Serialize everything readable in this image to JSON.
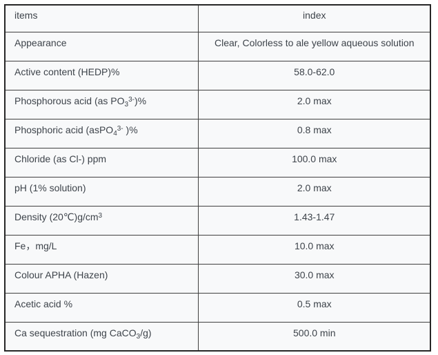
{
  "colors": {
    "border_outer": "#262626",
    "border_inner": "#3f3f3f",
    "cell_bg": "#f8f9fa",
    "text": "#3d434a",
    "page_bg": "#ffffff"
  },
  "table": {
    "columns": [
      {
        "label": "items"
      },
      {
        "label": "index"
      }
    ],
    "rows": [
      {
        "item": [
          {
            "t": "Appearance"
          }
        ],
        "index": [
          {
            "t": "Clear, Colorless to ale yellow aqueous solution"
          }
        ]
      },
      {
        "item": [
          {
            "t": "Active content (HEDP)%"
          }
        ],
        "index": [
          {
            "t": "58.0-62.0"
          }
        ]
      },
      {
        "item": [
          {
            "t": "Phosphorous acid (as PO"
          },
          {
            "t": "3",
            "s": "sub"
          },
          {
            "t": "3-",
            "s": "sup"
          },
          {
            "t": ")%"
          }
        ],
        "index": [
          {
            "t": "2.0 max"
          }
        ]
      },
      {
        "item": [
          {
            "t": "Phosphoric acid (asPO"
          },
          {
            "t": "4",
            "s": "sub"
          },
          {
            "t": "3-",
            "s": "sup"
          },
          {
            "t": " )%"
          }
        ],
        "index": [
          {
            "t": "0.8 max"
          }
        ]
      },
      {
        "item": [
          {
            "t": "Chloride (as Cl-) ppm"
          }
        ],
        "index": [
          {
            "t": "100.0 max"
          }
        ]
      },
      {
        "item": [
          {
            "t": "pH (1% solution)"
          }
        ],
        "index": [
          {
            "t": "2.0 max"
          }
        ]
      },
      {
        "item": [
          {
            "t": "Density (20℃)g/cm"
          },
          {
            "t": "3",
            "s": "sup"
          }
        ],
        "index": [
          {
            "t": "1.43-1.47"
          }
        ]
      },
      {
        "item": [
          {
            "t": "Fe，mg/L"
          }
        ],
        "index": [
          {
            "t": "10.0 max"
          }
        ]
      },
      {
        "item": [
          {
            "t": "Colour APHA (Hazen)"
          }
        ],
        "index": [
          {
            "t": "30.0 max"
          }
        ]
      },
      {
        "item": [
          {
            "t": "Acetic acid %"
          }
        ],
        "index": [
          {
            "t": "0.5 max"
          }
        ]
      },
      {
        "item": [
          {
            "t": "Ca sequestration (mg CaCO"
          },
          {
            "t": "3",
            "s": "sub"
          },
          {
            "t": "/g)"
          }
        ],
        "index": [
          {
            "t": "500.0 min"
          }
        ]
      }
    ]
  }
}
